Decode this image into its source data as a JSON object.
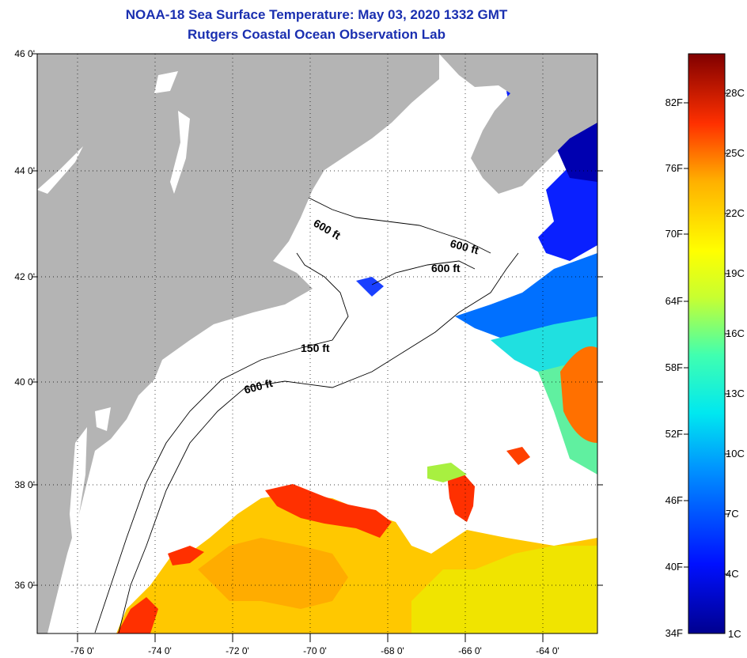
{
  "title": {
    "line1": "NOAA-18 Sea Surface Temperature:  May 03, 2020 1332 GMT",
    "line2": "Rutgers Coastal Ocean Observation Lab"
  },
  "map": {
    "lat_labels": [
      "46 0'",
      "44 0'",
      "42 0'",
      "40 0'",
      "38 0'",
      "36 0'"
    ],
    "lon_labels": [
      "-76 0'",
      "-74 0'",
      "-72 0'",
      "-70 0'",
      "-68 0'",
      "-66 0'",
      "-64 0'"
    ],
    "contour_labels": [
      "600 ft",
      "600 ft",
      "600 ft",
      "150 ft",
      "600 ft"
    ],
    "land_color": "#b4b4b4",
    "ocean_cloud_color": "#ffffff"
  },
  "colorbar": {
    "fahrenheit": [
      "82F",
      "76F",
      "70F",
      "64F",
      "58F",
      "52F",
      "46F",
      "40F",
      "34F"
    ],
    "celsius": [
      "28C",
      "25C",
      "22C",
      "19C",
      "16C",
      "13C",
      "10C",
      "7C",
      "4C",
      "1C"
    ]
  }
}
